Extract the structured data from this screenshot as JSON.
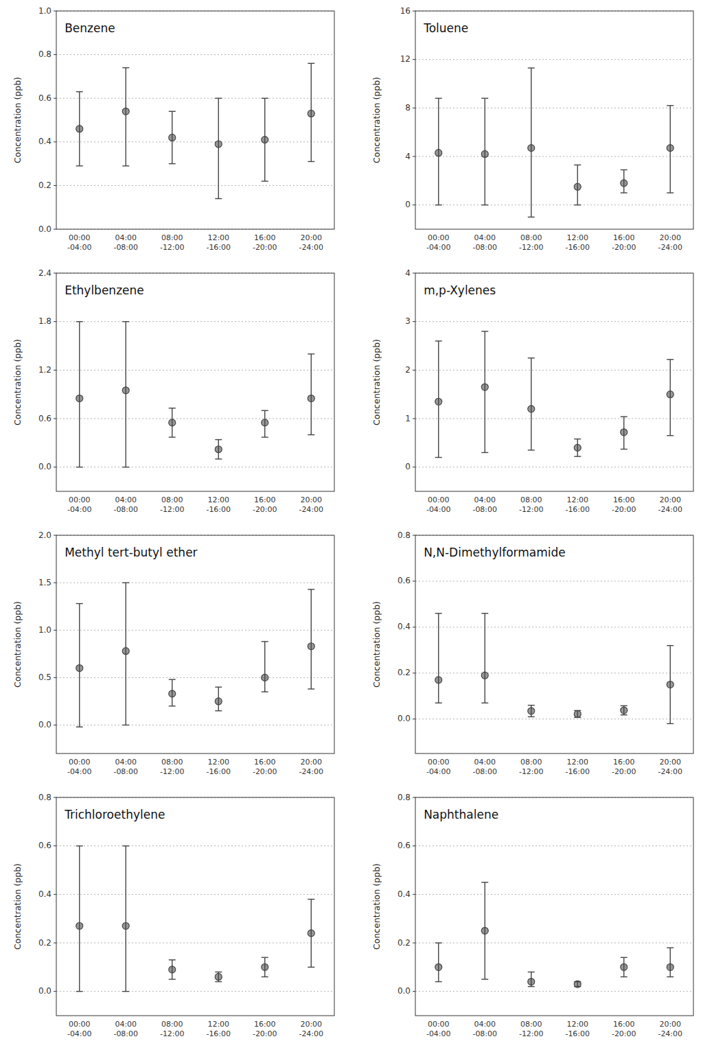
{
  "chart_data": [
    {
      "type": "errorbar",
      "title": "Benzene",
      "y_label": "Concentration (ppb)",
      "categories": [
        "00:00\n-04:00",
        "04:00\n-08:00",
        "08:00\n-12:00",
        "12:00\n-16:00",
        "16:00\n-20:00",
        "20:00\n-24:00"
      ],
      "values": [
        0.46,
        0.54,
        0.42,
        0.39,
        0.41,
        0.53
      ],
      "yerr_low": [
        0.17,
        0.25,
        0.12,
        0.25,
        0.19,
        0.22
      ],
      "yerr_high": [
        0.17,
        0.2,
        0.12,
        0.21,
        0.19,
        0.23
      ],
      "ylim": [
        0.0,
        1.0
      ],
      "yticks": [
        {
          "value": 0.0,
          "label": "0.0"
        },
        0.2,
        0.4,
        0.6,
        0.8,
        {
          "value": 1.0,
          "label": "1.0"
        }
      ],
      "color": "#444444",
      "grid": true
    },
    {
      "type": "errorbar",
      "title": "Toluene",
      "y_label": "Concentration (ppb)",
      "categories": [
        "00:00\n-04:00",
        "04:00\n-08:00",
        "08:00\n-12:00",
        "12:00\n-16:00",
        "16:00\n-20:00",
        "20:00\n-24:00"
      ],
      "values": [
        4.3,
        4.2,
        4.7,
        1.5,
        1.8,
        4.7
      ],
      "yerr_low": [
        4.3,
        4.2,
        5.7,
        1.5,
        0.8,
        3.7
      ],
      "yerr_high": [
        4.5,
        4.6,
        6.6,
        1.8,
        1.1,
        3.5
      ],
      "ylim": [
        -2,
        16
      ],
      "yticks": [
        0,
        4,
        8,
        12,
        16
      ],
      "color": "#444444",
      "grid": true
    },
    {
      "type": "errorbar",
      "title": "Ethylbenzene",
      "y_label": "Concentration (ppb)",
      "categories": [
        "00:00\n-04:00",
        "04:00\n-08:00",
        "08:00\n-12:00",
        "12:00\n-16:00",
        "16:00\n-20:00",
        "20:00\n-24:00"
      ],
      "values": [
        0.85,
        0.95,
        0.55,
        0.22,
        0.55,
        0.85
      ],
      "yerr_low": [
        0.85,
        0.95,
        0.18,
        0.12,
        0.18,
        0.45
      ],
      "yerr_high": [
        0.95,
        0.85,
        0.18,
        0.12,
        0.15,
        0.55
      ],
      "ylim": [
        -0.3,
        2.4
      ],
      "yticks": [
        {
          "value": 0.0,
          "label": "0.0"
        },
        0.6,
        1.2,
        1.8,
        2.4
      ],
      "color": "#444444",
      "grid": true
    },
    {
      "type": "errorbar",
      "title": "m,p-Xylenes",
      "y_label": "Concentration (ppb)",
      "categories": [
        "00:00\n-04:00",
        "04:00\n-08:00",
        "08:00\n-12:00",
        "12:00\n-16:00",
        "16:00\n-20:00",
        "20:00\n-24:00"
      ],
      "values": [
        1.35,
        1.65,
        1.2,
        0.4,
        0.72,
        1.5
      ],
      "yerr_low": [
        1.15,
        1.35,
        0.85,
        0.18,
        0.35,
        0.85
      ],
      "yerr_high": [
        1.25,
        1.15,
        1.05,
        0.18,
        0.32,
        0.72
      ],
      "ylim": [
        -0.5,
        4
      ],
      "yticks": [
        0,
        1,
        2,
        3,
        4
      ],
      "color": "#444444",
      "grid": true
    },
    {
      "type": "errorbar",
      "title": "Methyl tert-butyl ether",
      "y_label": "Concentration (ppb)",
      "categories": [
        "00:00\n-04:00",
        "04:00\n-08:00",
        "08:00\n-12:00",
        "12:00\n-16:00",
        "16:00\n-20:00",
        "20:00\n-24:00"
      ],
      "values": [
        0.6,
        0.78,
        0.33,
        0.25,
        0.5,
        0.83
      ],
      "yerr_low": [
        0.62,
        0.78,
        0.13,
        0.1,
        0.15,
        0.45
      ],
      "yerr_high": [
        0.68,
        0.72,
        0.15,
        0.15,
        0.38,
        0.6
      ],
      "ylim": [
        -0.3,
        2.0
      ],
      "yticks": [
        {
          "value": 0.0,
          "label": "0.0"
        },
        0.5,
        {
          "value": 1.0,
          "label": "1.0"
        },
        1.5,
        {
          "value": 2.0,
          "label": "2.0"
        }
      ],
      "color": "#444444",
      "grid": true
    },
    {
      "type": "errorbar",
      "title": "N,N-Dimethylformamide",
      "y_label": "Concentration (ppb)",
      "categories": [
        "00:00\n-04:00",
        "04:00\n-08:00",
        "08:00\n-12:00",
        "12:00\n-16:00",
        "16:00\n-20:00",
        "20:00\n-24:00"
      ],
      "values": [
        0.17,
        0.19,
        0.035,
        0.022,
        0.038,
        0.15
      ],
      "yerr_low": [
        0.1,
        0.12,
        0.025,
        0.015,
        0.02,
        0.17
      ],
      "yerr_high": [
        0.29,
        0.27,
        0.025,
        0.015,
        0.02,
        0.17
      ],
      "ylim": [
        -0.15,
        0.8
      ],
      "yticks": [
        {
          "value": 0.0,
          "label": "0.0"
        },
        0.2,
        0.4,
        0.6,
        0.8
      ],
      "color": "#444444",
      "grid": true
    },
    {
      "type": "errorbar",
      "title": "Trichloroethylene",
      "y_label": "Concentration (ppb)",
      "categories": [
        "00:00\n-04:00",
        "04:00\n-08:00",
        "08:00\n-12:00",
        "12:00\n-16:00",
        "16:00\n-20:00",
        "20:00\n-24:00"
      ],
      "values": [
        0.27,
        0.27,
        0.09,
        0.06,
        0.1,
        0.24
      ],
      "yerr_low": [
        0.27,
        0.27,
        0.04,
        0.02,
        0.04,
        0.14
      ],
      "yerr_high": [
        0.33,
        0.33,
        0.04,
        0.02,
        0.04,
        0.14
      ],
      "ylim": [
        -0.1,
        0.8
      ],
      "yticks": [
        {
          "value": 0.0,
          "label": "0.0"
        },
        0.2,
        0.4,
        0.6,
        0.8
      ],
      "color": "#444444",
      "grid": true
    },
    {
      "type": "errorbar",
      "title": "Naphthalene",
      "y_label": "Concentration (ppb)",
      "categories": [
        "00:00\n-04:00",
        "04:00\n-08:00",
        "08:00\n-12:00",
        "12:00\n-16:00",
        "16:00\n-20:00",
        "20:00\n-24:00"
      ],
      "values": [
        0.1,
        0.25,
        0.04,
        0.03,
        0.1,
        0.1
      ],
      "yerr_low": [
        0.06,
        0.2,
        0.02,
        0.01,
        0.04,
        0.04
      ],
      "yerr_high": [
        0.1,
        0.2,
        0.04,
        0.01,
        0.04,
        0.08
      ],
      "ylim": [
        -0.1,
        0.8
      ],
      "yticks": [
        {
          "value": 0.0,
          "label": "0.0"
        },
        0.2,
        0.4,
        0.6,
        0.8
      ],
      "color": "#444444",
      "grid": true
    }
  ]
}
